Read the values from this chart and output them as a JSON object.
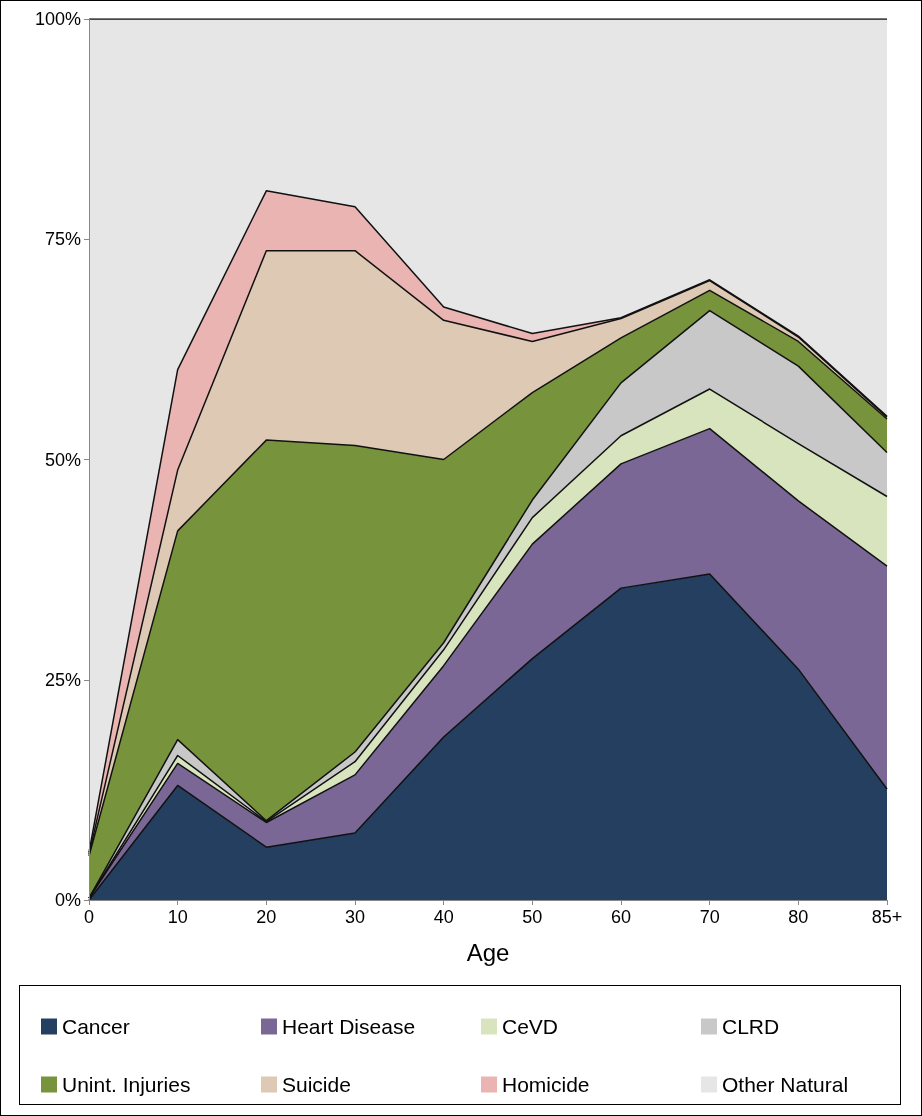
{
  "chart_data": {
    "type": "area",
    "stacked": true,
    "xlabel": "Age",
    "categories": [
      "0",
      "10",
      "20",
      "30",
      "40",
      "50",
      "60",
      "70",
      "80",
      "85+"
    ],
    "ylim": [
      0,
      100
    ],
    "yticks": [
      {
        "value": 0,
        "label": "0%"
      },
      {
        "value": 25,
        "label": "25%"
      },
      {
        "value": 50,
        "label": "50%"
      },
      {
        "value": 75,
        "label": "75%"
      },
      {
        "value": 100,
        "label": "100%"
      }
    ],
    "grid": false,
    "legend": "bottom",
    "marker": "none",
    "series": [
      {
        "name": "Cancer",
        "color": "#243f60",
        "values": [
          0,
          13.0,
          6.0,
          7.6,
          18.5,
          27.4,
          35.4,
          37.0,
          26.2,
          12.6
        ]
      },
      {
        "name": "Heart Disease",
        "color": "#7a6796",
        "values": [
          0.2,
          2.5,
          2.8,
          6.6,
          8.1,
          13.0,
          14.1,
          16.5,
          19.1,
          25.3
        ]
      },
      {
        "name": "CeVD",
        "color": "#d7e4bd",
        "values": [
          0,
          0.9,
          0.1,
          1.5,
          1.8,
          3.0,
          3.2,
          4.5,
          6.5,
          7.9
        ]
      },
      {
        "name": "CLRD",
        "color": "#c8c8c8",
        "values": [
          0,
          1.8,
          0.1,
          1.1,
          0.8,
          2.0,
          6.0,
          8.9,
          8.8,
          5.0
        ]
      },
      {
        "name": "Unint. Injuries",
        "color": "#77933c",
        "values": [
          4.8,
          23.7,
          43.2,
          34.8,
          20.8,
          12.2,
          5.1,
          2.3,
          2.8,
          3.8
        ]
      },
      {
        "name": "Suicide",
        "color": "#ddc9b4",
        "values": [
          0.2,
          6.9,
          21.5,
          22.1,
          15.8,
          5.8,
          2.2,
          1.1,
          0.5,
          0.2
        ]
      },
      {
        "name": "Homicide",
        "color": "#eab4b2",
        "values": [
          0.2,
          11.4,
          6.8,
          5.0,
          1.5,
          0.9,
          0.1,
          0.1,
          0.1,
          0.1
        ]
      },
      {
        "name": "Other Natural",
        "color": "#e6e6e6",
        "values": [
          94.6,
          39.8,
          19.5,
          21.3,
          32.7,
          35.7,
          33.9,
          29.6,
          36.0,
          45.1
        ]
      }
    ]
  }
}
